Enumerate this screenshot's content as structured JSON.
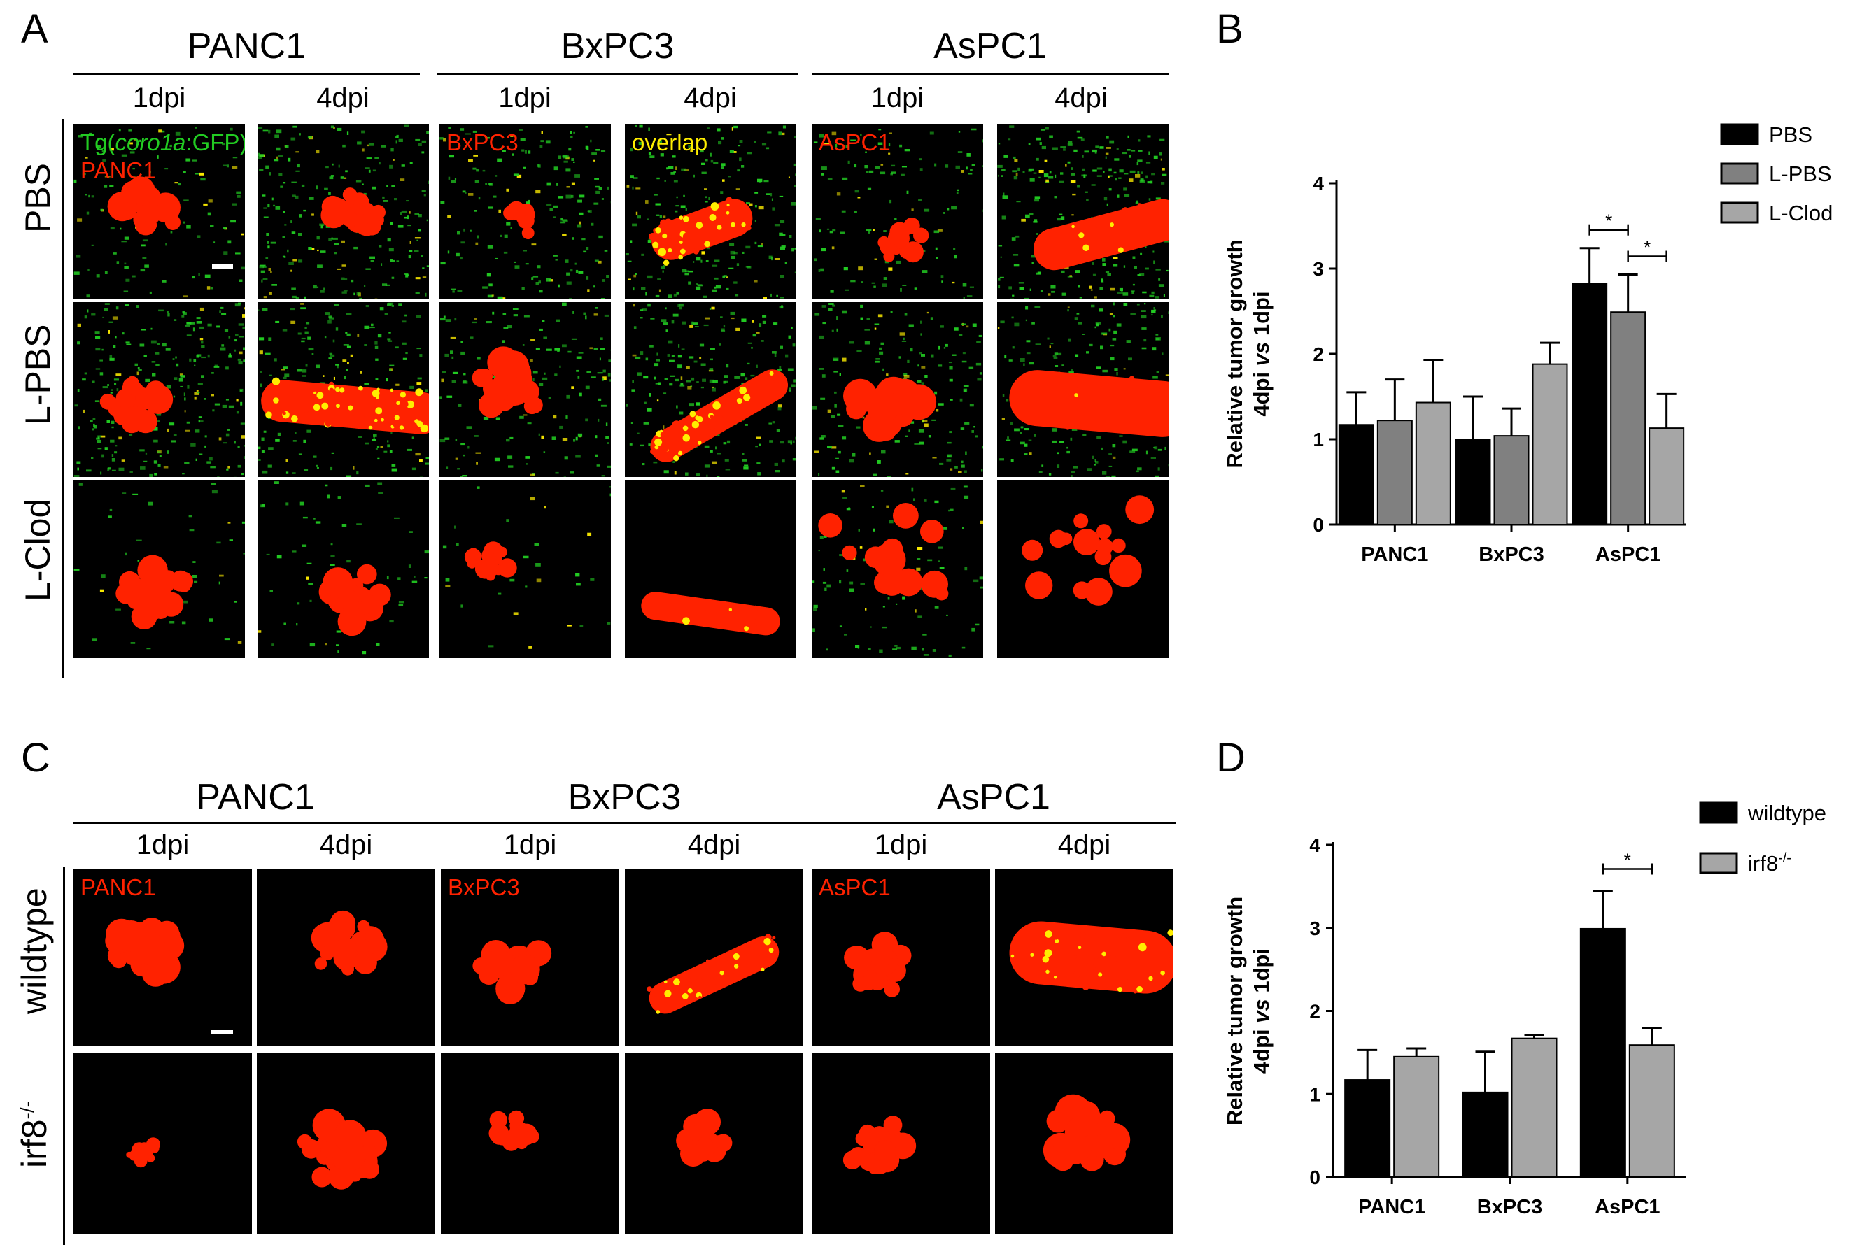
{
  "panelA": {
    "letter": "A",
    "groups": [
      "PANC1",
      "BxPC3",
      "AsPC1"
    ],
    "timepoints": [
      "1dpi",
      "4dpi"
    ],
    "rows": [
      "PBS",
      "L-PBS",
      "L-Clod"
    ],
    "tile_labels": {
      "t0_line1_pre": "Tg(",
      "t0_line1_ital": "coro1a",
      "t0_line1_post": ":GFP)",
      "t0_line2": "PANC1",
      "t2": "BxPC3",
      "t3": "overlap",
      "t4": "AsPC1"
    },
    "colors": {
      "red": "#ff2200",
      "green": "#22cc22",
      "yellow": "#ffee00"
    }
  },
  "panelB": {
    "letter": "B"
  },
  "panelC": {
    "letter": "C",
    "groups": [
      "PANC1",
      "BxPC3",
      "AsPC1"
    ],
    "timepoints": [
      "1dpi",
      "4dpi"
    ],
    "rows": [
      "wildtype",
      "irf8-/-"
    ],
    "row2_base": "irf8",
    "row2_sup": "-/-",
    "tile_labels": {
      "t0": "PANC1",
      "t2": "BxPC3",
      "t4": "AsPC1"
    }
  },
  "panelD": {
    "letter": "D"
  },
  "chart_data": [
    {
      "type": "bar",
      "panel": "B",
      "categories": [
        "PANC1",
        "BxPC3",
        "AsPC1"
      ],
      "ylabel_line1": "Relative tumor growth",
      "ylabel_line2_pre": "4dpi ",
      "ylabel_line2_ital": "vs",
      "ylabel_line2_post": " 1dpi",
      "ylim": [
        0,
        4
      ],
      "yticks": [
        "0",
        "1",
        "2",
        "3",
        "4"
      ],
      "legend_position": "top-right",
      "series": [
        {
          "name": "PBS",
          "color": "#000000",
          "values": [
            1.17,
            1.0,
            2.82
          ],
          "errors": [
            0.38,
            0.5,
            0.42
          ]
        },
        {
          "name": "L-PBS",
          "color": "#808080",
          "values": [
            1.22,
            1.04,
            2.49
          ],
          "errors": [
            0.48,
            0.32,
            0.44
          ]
        },
        {
          "name": "L-Clod",
          "color": "#a6a6a6",
          "values": [
            1.43,
            1.88,
            1.13
          ],
          "errors": [
            0.5,
            0.25,
            0.4
          ]
        }
      ],
      "significance": [
        {
          "category": "AsPC1",
          "from": "PBS",
          "to": "L-PBS",
          "label": "*"
        },
        {
          "category": "AsPC1",
          "from": "L-PBS",
          "to": "L-Clod",
          "label": "*"
        }
      ]
    },
    {
      "type": "bar",
      "panel": "D",
      "categories": [
        "PANC1",
        "BxPC3",
        "AsPC1"
      ],
      "ylabel_line1": "Relative tumor growth",
      "ylabel_line2_pre": "4dpi ",
      "ylabel_line2_ital": "vs",
      "ylabel_line2_post": " 1dpi",
      "ylim": [
        0,
        4
      ],
      "yticks": [
        "0",
        "1",
        "2",
        "3",
        "4"
      ],
      "legend_position": "top-right",
      "series": [
        {
          "name": "wildtype",
          "color": "#000000",
          "values": [
            1.17,
            1.02,
            2.99
          ],
          "errors": [
            0.36,
            0.49,
            0.45
          ]
        },
        {
          "name": "irf8-/-",
          "name_base": "irf8",
          "name_sup": "-/-",
          "color": "#a6a6a6",
          "values": [
            1.45,
            1.67,
            1.59
          ],
          "errors": [
            0.1,
            0.04,
            0.2
          ]
        }
      ],
      "significance": [
        {
          "category": "AsPC1",
          "from": "wildtype",
          "to": "irf8-/-",
          "label": "*"
        }
      ]
    }
  ]
}
